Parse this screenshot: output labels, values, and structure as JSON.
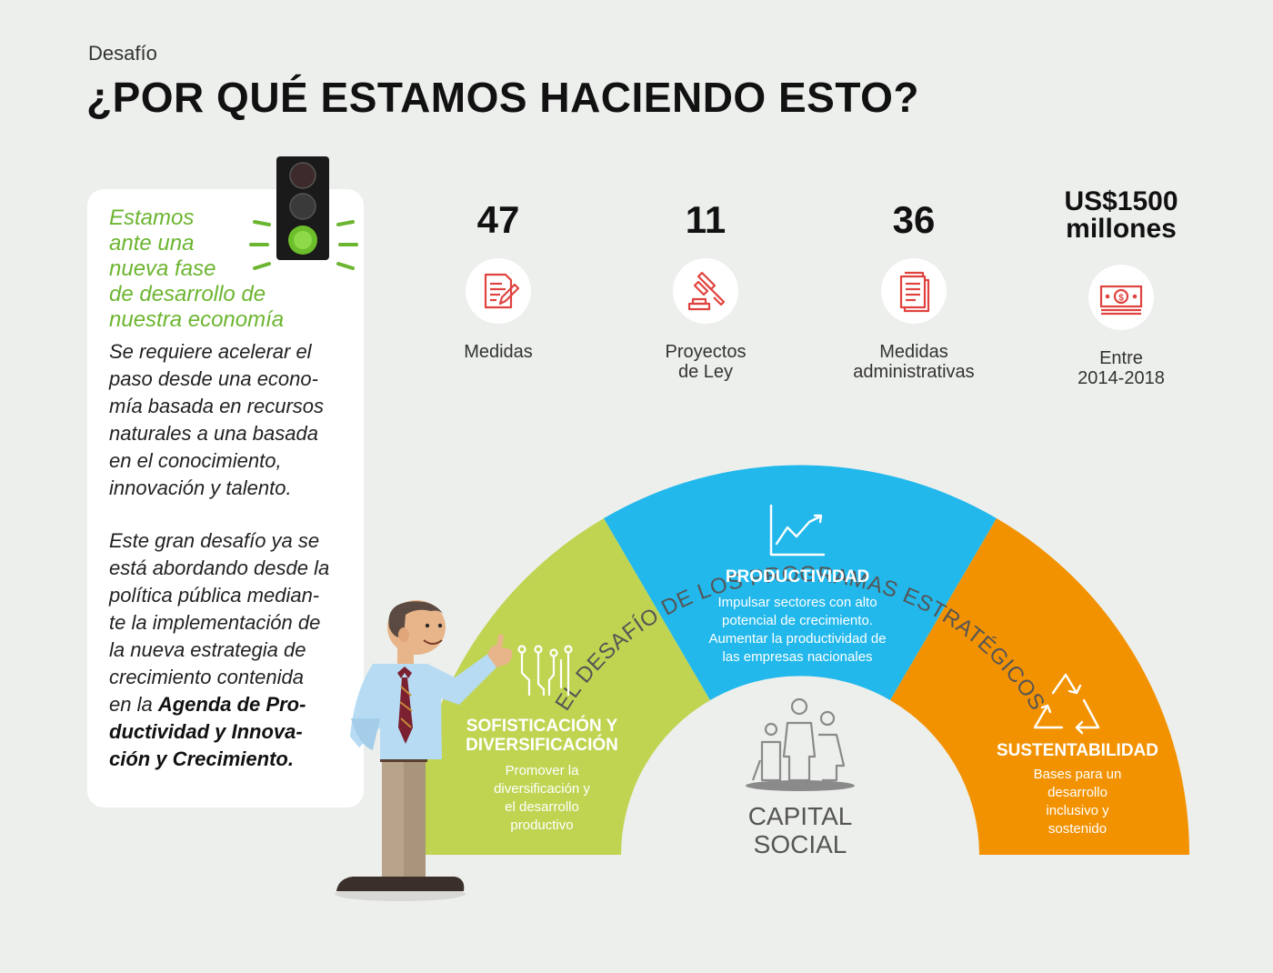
{
  "header": {
    "eyebrow": "Desafío",
    "title": "¿POR QUÉ ESTAMOS HACIENDO ESTO?"
  },
  "intro": {
    "lead_lines": [
      "Estamos",
      "ante una",
      "nueva fase",
      "de desarrollo de",
      "nuestra economía"
    ],
    "para1_lines": [
      "Se requiere acelerar el",
      "paso desde una econo-",
      "mía basada en recursos",
      "naturales a una basada",
      "en el conocimiento,",
      "innovación y talento."
    ],
    "para2_lines": [
      "Este gran desafío ya se",
      "está abordando desde la",
      "política pública median-",
      "te la implementación de",
      "la nueva estrategia de",
      "crecimiento contenida"
    ],
    "para2_prefix": "en la ",
    "para2_bold_lines": [
      "Agenda de Pro-",
      "ductividad y Innova-",
      "ción y Crecimiento."
    ]
  },
  "stats": [
    {
      "value": "47",
      "label_lines": [
        "Medidas"
      ],
      "icon": "document-pencil-icon"
    },
    {
      "value": "11",
      "label_lines": [
        "Proyectos",
        "de Ley"
      ],
      "icon": "gavel-icon"
    },
    {
      "value": "36",
      "label_lines": [
        "Medidas",
        "administrativas"
      ],
      "icon": "documents-icon"
    },
    {
      "value_lines": [
        "US$1500",
        "millones"
      ],
      "label_lines": [
        "Entre",
        "2014-2018"
      ],
      "icon": "money-bill-icon"
    }
  ],
  "programs": {
    "arc_title": "EL DESAFÍO DE LOS PROGRAMAS ESTRATÉGICOS",
    "segments": [
      {
        "title_lines": [
          "SOFISTICACIÓN Y",
          "DIVERSIFICACIÓN"
        ],
        "desc_lines": [
          "Promover la",
          "diversificación y",
          "el desarrollo",
          "productivo"
        ],
        "color": "#c0d452",
        "icon": "circuit-icon"
      },
      {
        "title_lines": [
          "PRODUCTIVIDAD"
        ],
        "desc_lines": [
          "Impulsar sectores con alto",
          "potencial de crecimiento.",
          "Aumentar la productividad de",
          "las empresas nacionales"
        ],
        "color": "#22b8ec",
        "icon": "growth-chart-icon"
      },
      {
        "title_lines": [
          "SUSTENTABILIDAD"
        ],
        "desc_lines": [
          "Bases para un",
          "desarrollo",
          "inclusivo y",
          "sostenido"
        ],
        "color": "#f39200",
        "icon": "recycle-icon"
      }
    ],
    "center": {
      "title_lines": [
        "CAPITAL",
        "SOCIAL"
      ],
      "icon": "family-icon"
    }
  },
  "colors": {
    "background": "#ecefeb",
    "accent_green": "#6cb530",
    "icon_red": "#e0433f"
  }
}
